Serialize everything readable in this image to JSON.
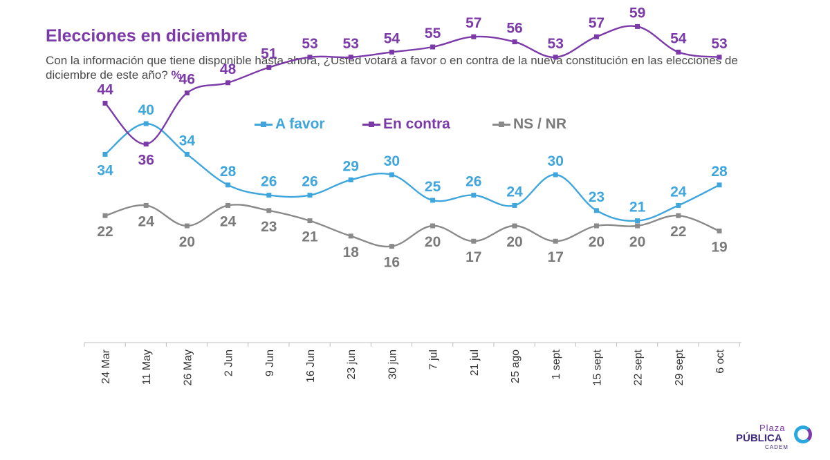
{
  "title": "Elecciones en diciembre",
  "subtitle": "Con la información que tiene disponible hasta ahora, ¿Usted votará a favor o en contra de la nueva constitución en las elecciones de diciembre de este año?",
  "subtitle_unit": "%",
  "logo": {
    "line1": "Plaza",
    "line2": "PÚBLICA",
    "line3": "CADEM"
  },
  "colors": {
    "a_favor": "#3ea6dc",
    "en_contra": "#7b3aa8",
    "ns_nr": "#8a8a8a",
    "title": "#7b3aa8"
  },
  "chart_data": {
    "type": "line",
    "categories": [
      "24 Mar",
      "11 May",
      "26 May",
      "2 Jun",
      "9 Jun",
      "16 Jun",
      "23 jun",
      "30 jun",
      "7 jul",
      "21 jul",
      "25 ago",
      "1 sept",
      "15 sept",
      "22 sept",
      "29 sept",
      "6 oct"
    ],
    "legend_position": "top-center",
    "grid": false,
    "series": [
      {
        "name": "A favor",
        "color": "#3ea6dc",
        "values": [
          34,
          40,
          34,
          28,
          26,
          26,
          29,
          30,
          25,
          26,
          24,
          30,
          23,
          21,
          24,
          28
        ],
        "label_side": [
          "below",
          "above",
          "above",
          "above",
          "above",
          "above",
          "above",
          "above",
          "above",
          "above",
          "above",
          "above",
          "above",
          "above",
          "above",
          "above"
        ]
      },
      {
        "name": "En contra",
        "color": "#7b3aa8",
        "values": [
          44,
          36,
          46,
          48,
          51,
          53,
          53,
          54,
          55,
          57,
          56,
          53,
          57,
          59,
          54,
          53
        ],
        "label_side": [
          "above",
          "below",
          "above",
          "above",
          "above",
          "above",
          "above",
          "above",
          "above",
          "above",
          "above",
          "above",
          "above",
          "above",
          "above",
          "above"
        ]
      },
      {
        "name": "NS / NR",
        "color": "#8a8a8a",
        "values": [
          22,
          24,
          20,
          24,
          23,
          21,
          18,
          16,
          20,
          17,
          20,
          17,
          20,
          20,
          22,
          19
        ],
        "label_side": [
          "below",
          "below",
          "below",
          "below",
          "below",
          "below",
          "below",
          "below",
          "below",
          "below",
          "below",
          "below",
          "below",
          "below",
          "below",
          "below"
        ]
      }
    ]
  }
}
